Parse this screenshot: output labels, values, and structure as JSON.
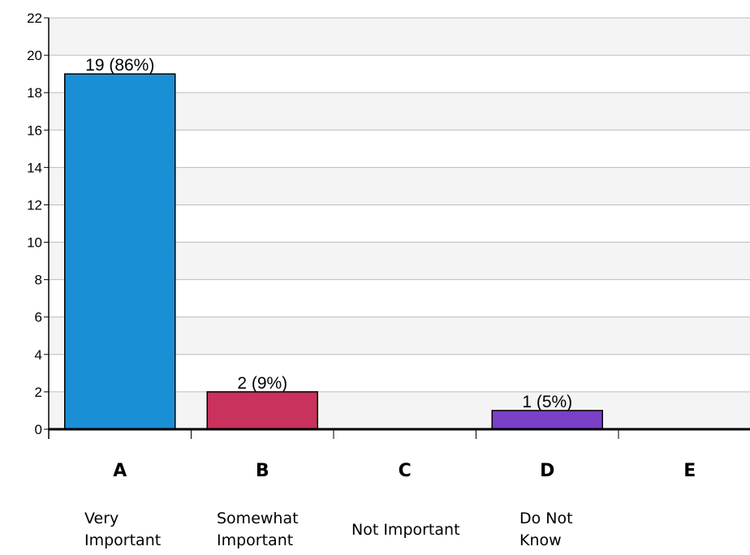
{
  "chart_data": {
    "type": "bar",
    "categories": [
      "A",
      "B",
      "C",
      "D",
      "E"
    ],
    "values": [
      19,
      2,
      0,
      1,
      0
    ],
    "data_labels": [
      "19 (86%)",
      "2 (9%)",
      "",
      "1 (5%)",
      ""
    ],
    "descriptions": [
      "Very\nImportant",
      "Somewhat\nImportant",
      "Not Important",
      "Do Not\nKnow",
      ""
    ],
    "colors": [
      "#1b8fd6",
      "#c8325c",
      "#000000",
      "#7a40c8",
      "#000000"
    ],
    "ylim": [
      0,
      22
    ],
    "yticks": [
      0,
      2,
      4,
      6,
      8,
      10,
      12,
      14,
      16,
      18,
      20,
      22
    ],
    "grid": true,
    "title": "",
    "xlabel": "",
    "ylabel": ""
  }
}
